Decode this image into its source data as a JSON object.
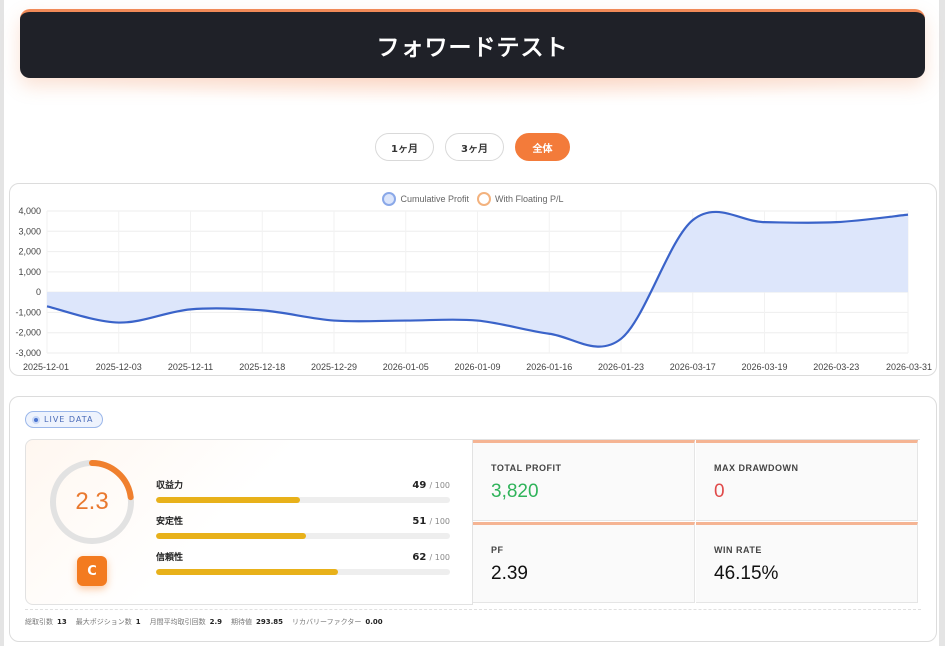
{
  "header": {
    "title": "フォワードテスト"
  },
  "period_tabs": [
    {
      "label": "1ヶ月",
      "active": false
    },
    {
      "label": "3ヶ月",
      "active": false
    },
    {
      "label": "全体",
      "active": true
    }
  ],
  "colors": {
    "accent": "#f37b3a",
    "line": "#3a63c9",
    "fill": "#dbe5fb",
    "bar": "#e8b11a"
  },
  "chart_data": {
    "type": "area",
    "legend": [
      "Cumulative Profit",
      "With Floating P/L"
    ],
    "legend_placement": "top",
    "x": [
      "2025-12-01",
      "2025-12-03",
      "2025-12-11",
      "2025-12-18",
      "2025-12-29",
      "2026-01-05",
      "2026-01-09",
      "2026-01-16",
      "2026-01-23",
      "2026-03-17",
      "2026-03-19",
      "2026-03-23",
      "2026-03-31"
    ],
    "series": [
      {
        "name": "Cumulative Profit",
        "values": [
          -700,
          -1500,
          -850,
          -900,
          -1400,
          -1400,
          -1400,
          -2050,
          -2300,
          3550,
          3450,
          3450,
          3820
        ]
      }
    ],
    "y_ticks": [
      "4,000",
      "3,000",
      "2,000",
      "1,000",
      "0",
      "-1,000",
      "-2,000",
      "-3,000"
    ],
    "ylim": [
      -3000,
      4000
    ],
    "grid": true
  },
  "live_badge": "LIVE DATA",
  "score": {
    "value": "2.3",
    "gauge_fraction": 0.23,
    "grade": "C",
    "metrics": [
      {
        "label": "収益力",
        "score": "49",
        "max": "/ 100",
        "fraction": 0.49
      },
      {
        "label": "安定性",
        "score": "51",
        "max": "/ 100",
        "fraction": 0.51
      },
      {
        "label": "信頼性",
        "score": "62",
        "max": "/ 100",
        "fraction": 0.62
      }
    ]
  },
  "stats": {
    "total_profit": {
      "label": "TOTAL PROFIT",
      "value": "3,820"
    },
    "max_drawdown": {
      "label": "MAX DRAWDOWN",
      "value": "0"
    },
    "pf": {
      "label": "PF",
      "value": "2.39"
    },
    "win_rate": {
      "label": "WIN RATE",
      "value": "46.15%"
    }
  },
  "footer": [
    {
      "label": "総取引数",
      "value": "13"
    },
    {
      "label": "最大ポジション数",
      "value": "1"
    },
    {
      "label": "月間平均取引回数",
      "value": "2.9"
    },
    {
      "label": "期待値",
      "value": "293.85"
    },
    {
      "label": "リカバリーファクター",
      "value": "0.00"
    }
  ]
}
